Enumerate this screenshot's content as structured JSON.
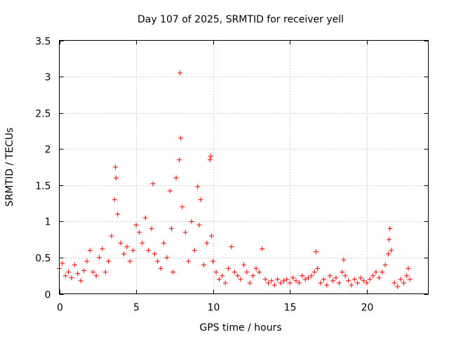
{
  "chart_data": {
    "type": "scatter",
    "title": "Day 107 of 2025, SRMTID for receiver yell",
    "xlabel": "GPS time / hours",
    "ylabel": "SRMTID / TECUs",
    "xlim": [
      0,
      24
    ],
    "ylim": [
      0,
      3.5
    ],
    "xticks": [
      0,
      5,
      10,
      15,
      20
    ],
    "xtick_labels": [
      "0",
      "5",
      "10",
      "15",
      "20"
    ],
    "yticks": [
      0,
      0.5,
      1,
      1.5,
      2,
      2.5,
      3,
      3.5
    ],
    "ytick_labels": [
      "0",
      "0.5",
      "1",
      "1.5",
      "2",
      "2.5",
      "3",
      "3.5"
    ],
    "grid": true,
    "marker": "+",
    "color": "#ff0000",
    "series": [
      {
        "name": "SRMTID",
        "x": [
          0.0,
          0.2,
          0.4,
          0.6,
          0.8,
          1.0,
          1.2,
          1.4,
          1.6,
          1.8,
          2.0,
          2.2,
          2.4,
          2.6,
          2.8,
          3.0,
          3.2,
          3.4,
          3.6,
          3.65,
          3.7,
          3.8,
          4.0,
          4.2,
          4.4,
          4.6,
          4.8,
          5.0,
          5.2,
          5.4,
          5.6,
          5.8,
          6.0,
          6.1,
          6.2,
          6.4,
          6.6,
          6.8,
          7.0,
          7.2,
          7.3,
          7.4,
          7.6,
          7.8,
          7.85,
          7.9,
          8.0,
          8.2,
          8.4,
          8.6,
          8.8,
          9.0,
          9.1,
          9.2,
          9.4,
          9.6,
          9.8,
          9.85,
          9.9,
          10.0,
          10.2,
          10.4,
          10.6,
          10.8,
          11.0,
          11.2,
          11.4,
          11.6,
          11.8,
          12.0,
          12.2,
          12.4,
          12.6,
          12.8,
          13.0,
          13.2,
          13.4,
          13.6,
          13.8,
          14.0,
          14.2,
          14.4,
          14.6,
          14.8,
          15.0,
          15.2,
          15.4,
          15.6,
          15.8,
          16.0,
          16.2,
          16.4,
          16.6,
          16.7,
          16.8,
          17.0,
          17.2,
          17.4,
          17.6,
          17.8,
          18.0,
          18.2,
          18.4,
          18.5,
          18.6,
          18.8,
          19.0,
          19.2,
          19.4,
          19.6,
          19.8,
          20.0,
          20.2,
          20.4,
          20.6,
          20.8,
          21.0,
          21.2,
          21.4,
          21.45,
          21.5,
          21.6,
          21.8,
          22.0,
          22.2,
          22.4,
          22.6,
          22.7,
          22.8
        ],
        "y": [
          0.35,
          0.42,
          0.25,
          0.3,
          0.22,
          0.4,
          0.28,
          0.18,
          0.32,
          0.45,
          0.6,
          0.3,
          0.25,
          0.5,
          0.62,
          0.3,
          0.45,
          0.8,
          1.3,
          1.75,
          1.6,
          1.1,
          0.7,
          0.55,
          0.65,
          0.45,
          0.6,
          0.95,
          0.85,
          0.7,
          1.05,
          0.6,
          0.9,
          1.52,
          0.55,
          0.45,
          0.35,
          0.7,
          0.5,
          1.42,
          0.9,
          0.3,
          1.6,
          1.85,
          3.05,
          2.15,
          1.2,
          0.85,
          0.45,
          1.0,
          0.6,
          1.48,
          0.95,
          1.3,
          0.4,
          0.7,
          1.85,
          1.9,
          0.8,
          0.45,
          0.3,
          0.2,
          0.25,
          0.15,
          0.35,
          0.65,
          0.3,
          0.25,
          0.2,
          0.4,
          0.3,
          0.15,
          0.25,
          0.35,
          0.3,
          0.62,
          0.2,
          0.15,
          0.18,
          0.12,
          0.2,
          0.15,
          0.18,
          0.2,
          0.15,
          0.22,
          0.18,
          0.15,
          0.25,
          0.2,
          0.22,
          0.25,
          0.3,
          0.58,
          0.35,
          0.15,
          0.2,
          0.12,
          0.25,
          0.18,
          0.22,
          0.15,
          0.3,
          0.47,
          0.25,
          0.18,
          0.12,
          0.2,
          0.15,
          0.22,
          0.18,
          0.15,
          0.2,
          0.25,
          0.3,
          0.22,
          0.3,
          0.4,
          0.55,
          0.75,
          0.9,
          0.6,
          0.15,
          0.1,
          0.2,
          0.15,
          0.25,
          0.35,
          0.2
        ]
      }
    ]
  }
}
